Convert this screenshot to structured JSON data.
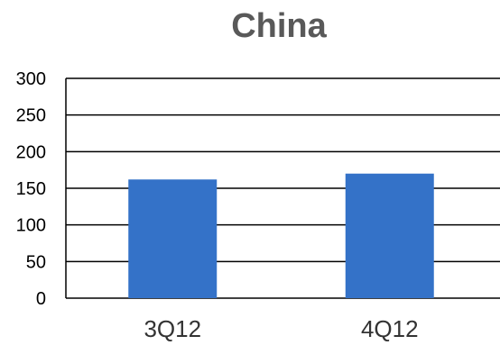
{
  "chart_data": {
    "type": "bar",
    "title": "China",
    "categories": [
      "3Q12",
      "4Q12"
    ],
    "values": [
      162,
      170
    ],
    "ylim": [
      0,
      300
    ],
    "yticks": [
      0,
      50,
      100,
      150,
      200,
      250,
      300
    ],
    "grid": true,
    "legend": "none",
    "bar_color": "#3472C8"
  }
}
